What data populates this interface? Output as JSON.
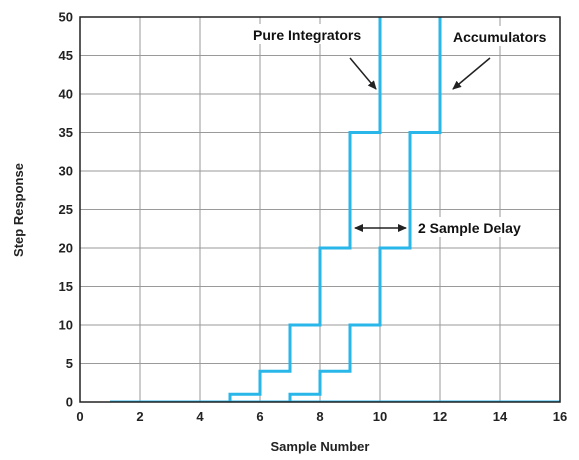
{
  "chart_data": {
    "type": "line",
    "xlabel": "Sample Number",
    "ylabel": "Step Response",
    "xlim": [
      0,
      16
    ],
    "ylim": [
      0,
      50
    ],
    "x_ticks": [
      0,
      2,
      4,
      6,
      8,
      10,
      12,
      14,
      16
    ],
    "y_ticks": [
      0,
      5,
      10,
      15,
      20,
      25,
      30,
      35,
      40,
      45,
      50
    ],
    "grid": true,
    "line_color": "#29b6e8",
    "series": [
      {
        "name": "Pure Integrators",
        "points": [
          [
            1,
            0
          ],
          [
            5,
            0
          ],
          [
            5,
            1
          ],
          [
            6,
            1
          ],
          [
            6,
            4
          ],
          [
            7,
            4
          ],
          [
            7,
            10
          ],
          [
            8,
            10
          ],
          [
            8,
            20
          ],
          [
            9,
            20
          ],
          [
            9,
            35
          ],
          [
            10,
            35
          ],
          [
            10,
            56
          ]
        ]
      },
      {
        "name": "Accumulators",
        "points": [
          [
            1,
            0
          ],
          [
            7,
            0
          ],
          [
            7,
            1
          ],
          [
            8,
            1
          ],
          [
            8,
            4
          ],
          [
            9,
            4
          ],
          [
            9,
            10
          ],
          [
            10,
            10
          ],
          [
            10,
            20
          ],
          [
            11,
            20
          ],
          [
            11,
            35
          ],
          [
            12,
            35
          ],
          [
            12,
            56
          ]
        ]
      }
    ],
    "annotations": {
      "pure_integrators": "Pure Integrators",
      "accumulators": "Accumulators",
      "delay": "2 Sample Delay"
    }
  }
}
